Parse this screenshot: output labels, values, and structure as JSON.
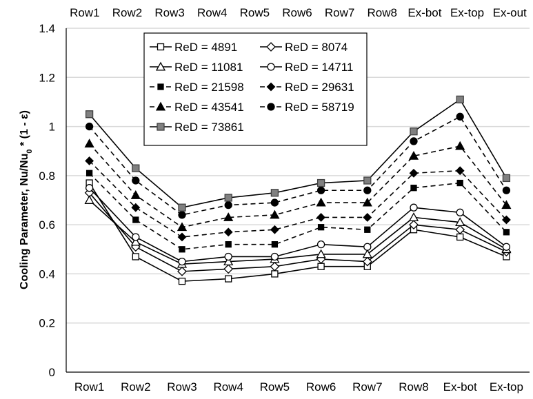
{
  "chart_data": {
    "type": "line",
    "title": "",
    "xlabel": "",
    "ylabel": "Cooling Parameter, Nu/Nu",
    "ylabel_sub": "0",
    "ylabel_tail": " * (1 - ε)",
    "categories": [
      "Row1",
      "Row2",
      "Row3",
      "Row4",
      "Row5",
      "Row6",
      "Row7",
      "Row8",
      "Ex-bot",
      "Ex-top"
    ],
    "top_categories": [
      "Row1",
      "Row2",
      "Row3",
      "Row4",
      "Row5",
      "Row6",
      "Row7",
      "Row8",
      "Ex-bot",
      "Ex-top",
      "Ex-out"
    ],
    "ylim": [
      0,
      1.4
    ],
    "yticks": [
      "0",
      "0.2",
      "0.4",
      "0.6",
      "0.8",
      "1",
      "1.2",
      "1.4"
    ],
    "ytick_values": [
      0,
      0.2,
      0.4,
      0.6,
      0.8,
      1.0,
      1.2,
      1.4
    ],
    "grid": "horizontal",
    "legend_position": "top-left",
    "series": [
      {
        "name": "ReD = 4891",
        "marker": "square-open",
        "dash": "solid",
        "values": [
          0.77,
          0.47,
          0.37,
          0.38,
          0.4,
          0.43,
          0.43,
          0.58,
          0.55,
          0.47
        ]
      },
      {
        "name": "ReD = 8074",
        "marker": "diamond-open",
        "dash": "solid",
        "values": [
          0.73,
          0.51,
          0.41,
          0.42,
          0.43,
          0.46,
          0.45,
          0.6,
          0.58,
          0.49
        ]
      },
      {
        "name": "ReD = 11081",
        "marker": "triangle-open",
        "dash": "solid",
        "values": [
          0.7,
          0.53,
          0.44,
          0.45,
          0.46,
          0.48,
          0.48,
          0.63,
          0.61,
          0.5
        ]
      },
      {
        "name": "ReD = 14711",
        "marker": "circle-open",
        "dash": "solid",
        "values": [
          0.75,
          0.55,
          0.45,
          0.47,
          0.47,
          0.52,
          0.51,
          0.67,
          0.65,
          0.51
        ]
      },
      {
        "name": "ReD = 21598",
        "marker": "square-filled",
        "dash": "dashed",
        "values": [
          0.81,
          0.62,
          0.5,
          0.52,
          0.52,
          0.59,
          0.58,
          0.75,
          0.77,
          0.57
        ]
      },
      {
        "name": "ReD = 29631",
        "marker": "diamond-filled",
        "dash": "dashed",
        "values": [
          0.86,
          0.67,
          0.55,
          0.57,
          0.58,
          0.63,
          0.63,
          0.81,
          0.82,
          0.62
        ]
      },
      {
        "name": "ReD = 43541",
        "marker": "triangle-filled",
        "dash": "dashed",
        "values": [
          0.93,
          0.72,
          0.59,
          0.63,
          0.64,
          0.69,
          0.69,
          0.88,
          0.92,
          0.68
        ]
      },
      {
        "name": "ReD = 58719",
        "marker": "circle-filled",
        "dash": "dashed",
        "values": [
          1.0,
          0.78,
          0.64,
          0.68,
          0.69,
          0.74,
          0.74,
          0.94,
          1.04,
          0.74
        ]
      },
      {
        "name": "ReD = 73861",
        "marker": "square-gray",
        "dash": "solid",
        "values": [
          1.05,
          0.83,
          0.67,
          0.71,
          0.73,
          0.77,
          0.78,
          0.98,
          1.11,
          0.79
        ]
      }
    ],
    "colors": {
      "line": "#000000",
      "gray_marker": "#808080",
      "grid": "#d9d9d9",
      "axis": "#000000"
    }
  }
}
